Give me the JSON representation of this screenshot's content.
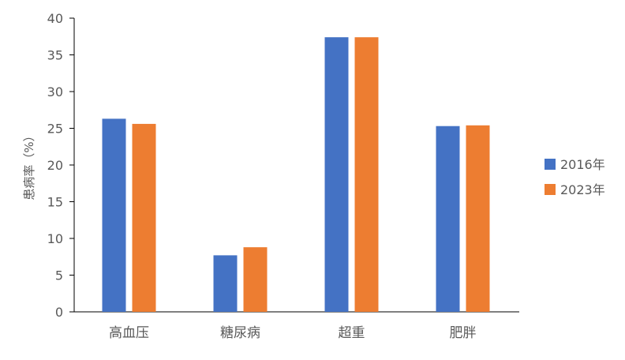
{
  "chart_data": {
    "type": "bar",
    "categories": [
      "高血压",
      "糖尿病",
      "超重",
      "肥胖"
    ],
    "series": [
      {
        "name": "2016年",
        "values": [
          26.3,
          7.7,
          37.4,
          25.3
        ],
        "color": "#4472C4"
      },
      {
        "name": "2023年",
        "values": [
          25.6,
          8.8,
          37.4,
          25.4
        ],
        "color": "#ED7D31"
      }
    ],
    "ylabel": "患病率（%）",
    "ylim": [
      0,
      40
    ],
    "yticks": [
      0,
      5,
      10,
      15,
      20,
      25,
      30,
      35,
      40
    ],
    "grid": false,
    "legend": "right",
    "axis_color": "#000000"
  }
}
